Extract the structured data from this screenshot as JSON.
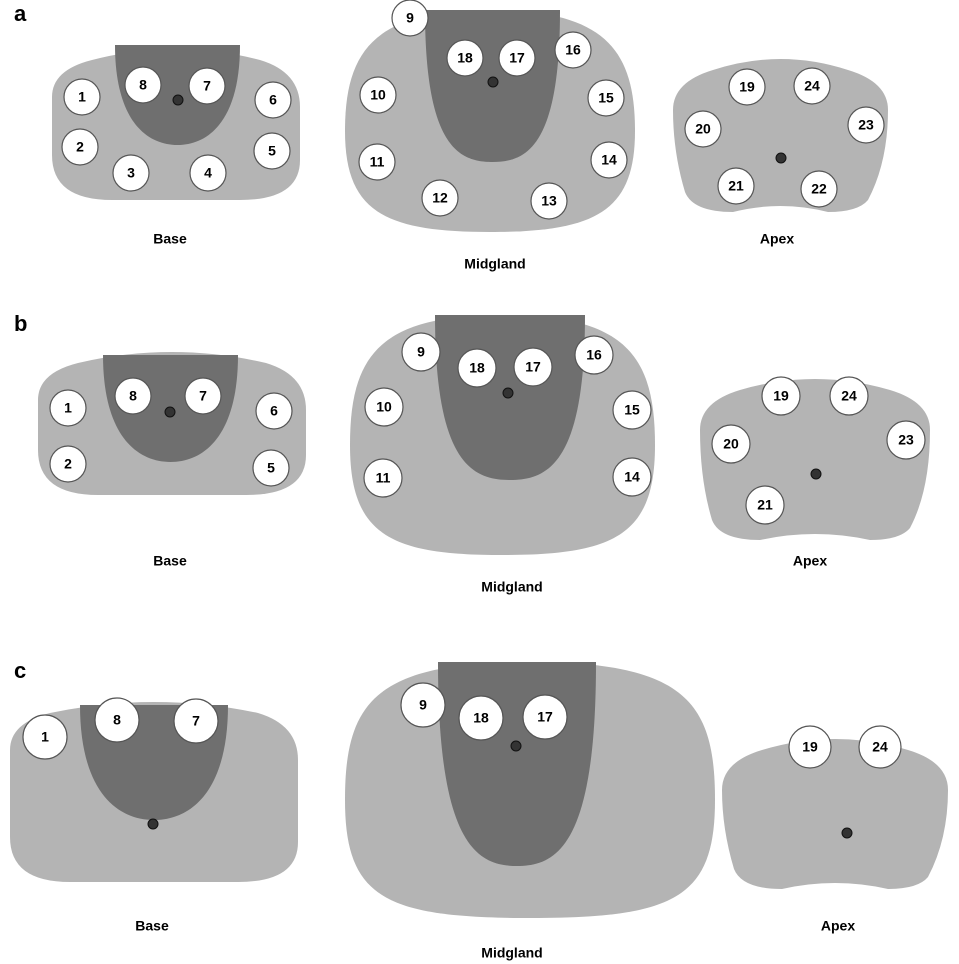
{
  "panels": [
    {
      "label": "a",
      "sections": [
        {
          "name": "Base",
          "cores": [
            "1",
            "8",
            "7",
            "6",
            "2",
            "5",
            "3",
            "4"
          ]
        },
        {
          "name": "Midgland",
          "cores": [
            "9",
            "18",
            "17",
            "16",
            "10",
            "15",
            "11",
            "14",
            "12",
            "13"
          ]
        },
        {
          "name": "Apex",
          "cores": [
            "19",
            "24",
            "20",
            "23",
            "21",
            "22"
          ]
        }
      ]
    },
    {
      "label": "b",
      "sections": [
        {
          "name": "Base",
          "cores": [
            "1",
            "8",
            "7",
            "6",
            "2",
            "5"
          ]
        },
        {
          "name": "Midgland",
          "cores": [
            "9",
            "18",
            "17",
            "16",
            "10",
            "15",
            "11",
            "14"
          ]
        },
        {
          "name": "Apex",
          "cores": [
            "19",
            "24",
            "20",
            "23",
            "21"
          ]
        }
      ]
    },
    {
      "label": "c",
      "sections": [
        {
          "name": "Base",
          "cores": [
            "1",
            "8",
            "7"
          ]
        },
        {
          "name": "Midgland",
          "cores": [
            "9",
            "18",
            "17"
          ]
        },
        {
          "name": "Apex",
          "cores": [
            "19",
            "24"
          ]
        }
      ]
    }
  ]
}
